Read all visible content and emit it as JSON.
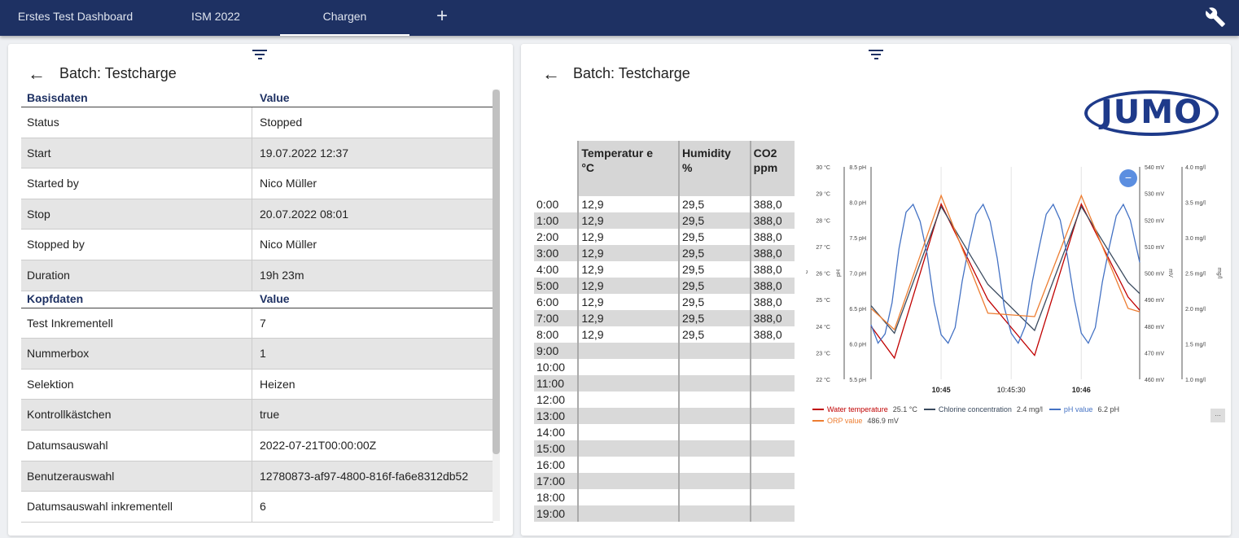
{
  "nav": {
    "tabs": [
      {
        "label": "Erstes Test Dashboard"
      },
      {
        "label": "ISM 2022"
      },
      {
        "label": "Chargen",
        "active": true
      }
    ],
    "add_icon": "plus-icon",
    "settings_icon": "wrench-icon"
  },
  "left": {
    "title": "Batch: Testcharge",
    "sections": [
      {
        "header": "Basisdaten",
        "value_header": "Value",
        "rows": [
          [
            "Status",
            "Stopped"
          ],
          [
            "Start",
            "19.07.2022 12:37"
          ],
          [
            "Started by",
            "Nico Müller"
          ],
          [
            "Stop",
            "20.07.2022 08:01"
          ],
          [
            "Stopped by",
            "Nico Müller"
          ],
          [
            "Duration",
            "19h 23m"
          ]
        ]
      },
      {
        "header": "Kopfdaten",
        "value_header": "Value",
        "rows": [
          [
            "Test Inkrementell",
            "7"
          ],
          [
            "Nummerbox",
            "1"
          ],
          [
            "Selektion",
            "Heizen"
          ],
          [
            "Kontrollkästchen",
            "true"
          ],
          [
            "Datumsauswahl",
            "2022-07-21T00:00:00Z"
          ],
          [
            "Benutzerauswahl",
            "12780873-af97-4800-816f-fa6e8312db52"
          ],
          [
            "Datumsauswahl inkrementell",
            "6"
          ]
        ]
      }
    ]
  },
  "right": {
    "title": "Batch: Testcharge",
    "logo": "JUMO",
    "table": {
      "columns": [
        {
          "name": "Temperatur e",
          "unit": "°C"
        },
        {
          "name": "Humidity",
          "unit": "%"
        },
        {
          "name": "CO2",
          "unit": "ppm"
        }
      ],
      "rows": [
        [
          "0:00",
          "12,9",
          "29,5",
          "388,0"
        ],
        [
          "1:00",
          "12,9",
          "29,5",
          "388,0"
        ],
        [
          "2:00",
          "12,9",
          "29,5",
          "388,0"
        ],
        [
          "3:00",
          "12,9",
          "29,5",
          "388,0"
        ],
        [
          "4:00",
          "12,9",
          "29,5",
          "388,0"
        ],
        [
          "5:00",
          "12,9",
          "29,5",
          "388,0"
        ],
        [
          "6:00",
          "12,9",
          "29,5",
          "388,0"
        ],
        [
          "7:00",
          "12,9",
          "29,5",
          "388,0"
        ],
        [
          "8:00",
          "12,9",
          "29,5",
          "388,0"
        ],
        [
          "9:00",
          "",
          "",
          ""
        ],
        [
          "10:00",
          "",
          "",
          ""
        ],
        [
          "11:00",
          "",
          "",
          ""
        ],
        [
          "12:00",
          "",
          "",
          ""
        ],
        [
          "13:00",
          "",
          "",
          ""
        ],
        [
          "14:00",
          "",
          "",
          ""
        ],
        [
          "15:00",
          "",
          "",
          ""
        ],
        [
          "16:00",
          "",
          "",
          ""
        ],
        [
          "17:00",
          "",
          "",
          ""
        ],
        [
          "18:00",
          "",
          "",
          ""
        ],
        [
          "19:00",
          "",
          "",
          ""
        ]
      ]
    }
  },
  "chart_data": {
    "type": "line",
    "x_range": [
      "10:44:30",
      "10:46:25"
    ],
    "x_ticks": [
      "10:45",
      "10:45:30",
      "10:46"
    ],
    "axes": [
      {
        "id": "temp",
        "label": "°C",
        "range": [
          22,
          30
        ],
        "ticks": [
          "22 °C",
          "23 °C",
          "24 °C",
          "25 °C",
          "26 °C",
          "27 °C",
          "28 °C",
          "29 °C",
          "30 °C"
        ],
        "side": "left"
      },
      {
        "id": "ph",
        "label": "pH",
        "range": [
          5.5,
          8.5
        ],
        "ticks": [
          "5.5 pH",
          "6.0 pH",
          "6.5 pH",
          "7.0 pH",
          "7.5 pH",
          "8.0 pH",
          "8.5 pH"
        ],
        "side": "left"
      },
      {
        "id": "mv",
        "label": "mV",
        "range": [
          460,
          540
        ],
        "ticks": [
          "460 mV",
          "470 mV",
          "480 mV",
          "490 mV",
          "500 mV",
          "510 mV",
          "520 mV",
          "530 mV",
          "540 mV"
        ],
        "side": "right"
      },
      {
        "id": "mgl",
        "label": "mg/l",
        "range": [
          1,
          4
        ],
        "ticks": [
          "1.0 mg/l",
          "1.5 mg/l",
          "2.0 mg/l",
          "2.5 mg/l",
          "3.0 mg/l",
          "3.5 mg/l",
          "4.0 mg/l"
        ],
        "side": "right"
      }
    ],
    "series": [
      {
        "name": "Water temperature",
        "axis": "temp",
        "color": "#c00000",
        "current": "25.1 °C",
        "x": [
          "10:44:30",
          "10:44:40",
          "10:45:00",
          "10:45:20",
          "10:45:40",
          "10:46:00",
          "10:46:20",
          "10:46:25"
        ],
        "y": [
          24.0,
          22.8,
          28.6,
          25.0,
          22.9,
          28.6,
          25.1,
          24.6
        ]
      },
      {
        "name": "Chlorine concentration",
        "axis": "mgl",
        "color": "#3a4a5e",
        "current": "2.4 mg/l",
        "x": [
          "10:44:30",
          "10:44:40",
          "10:45:00",
          "10:45:20",
          "10:45:40",
          "10:46:00",
          "10:46:20",
          "10:46:25"
        ],
        "y": [
          2.04,
          1.65,
          3.44,
          2.34,
          1.69,
          3.44,
          2.37,
          2.21
        ]
      },
      {
        "name": "pH value",
        "axis": "ph",
        "color": "#4472c4",
        "current": "6.2 pH",
        "x": [
          "10:44:30",
          "10:44:33",
          "10:44:36",
          "10:44:39",
          "10:44:42",
          "10:44:45",
          "10:44:48",
          "10:44:51",
          "10:44:54",
          "10:44:57",
          "10:45:00",
          "10:45:03",
          "10:45:06",
          "10:45:09",
          "10:45:12",
          "10:45:15",
          "10:45:18",
          "10:45:21",
          "10:45:24",
          "10:45:27",
          "10:45:30",
          "10:45:33",
          "10:45:36",
          "10:45:39",
          "10:45:42",
          "10:45:45",
          "10:45:48",
          "10:45:51",
          "10:45:54",
          "10:45:57",
          "10:46:00",
          "10:46:03",
          "10:46:06",
          "10:46:09",
          "10:46:12",
          "10:46:15",
          "10:46:18",
          "10:46:21",
          "10:46:25"
        ],
        "y": [
          6.27,
          6.01,
          6.14,
          6.58,
          7.35,
          7.86,
          7.97,
          7.73,
          7.27,
          6.58,
          6.13,
          6.01,
          6.23,
          6.88,
          7.4,
          7.83,
          7.97,
          7.73,
          7.21,
          6.52,
          6.15,
          6.01,
          6.25,
          6.87,
          7.37,
          7.83,
          7.97,
          7.75,
          7.25,
          6.63,
          6.15,
          6.01,
          6.23,
          6.87,
          7.37,
          7.81,
          7.97,
          7.75,
          7.15
        ]
      },
      {
        "name": "ORP value",
        "axis": "mv",
        "color": "#ed7d31",
        "current": "486.9 mV",
        "x": [
          "10:44:30",
          "10:44:40",
          "10:45:00",
          "10:45:20",
          "10:45:40",
          "10:46:00",
          "10:46:20",
          "10:46:25"
        ],
        "y": [
          486.7,
          478.7,
          529.2,
          484.9,
          483.6,
          529.2,
          486.7,
          485.4
        ]
      }
    ],
    "legend": "bottom",
    "grid": "vertical",
    "more_label": "..."
  }
}
